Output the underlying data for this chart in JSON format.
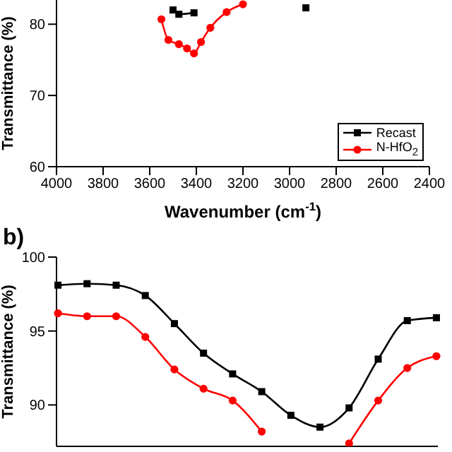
{
  "chart_data": [
    {
      "type": "line",
      "xlabel": "Wavenumber (cm$^{-1}$)",
      "ylabel": "Transmittance (%)",
      "xlim": [
        4000,
        2400
      ],
      "xticks": [
        4000,
        3800,
        3600,
        3400,
        3200,
        3000,
        2800,
        2600,
        2400
      ],
      "ylim": [
        60,
        83.4
      ],
      "yticks": [
        60,
        70,
        80
      ],
      "legend": "bottom right",
      "grid": false,
      "series": [
        {
          "name": "Recast",
          "color": "#000000",
          "marker": "square",
          "x": [
            3500,
            3475,
            3410,
            3200,
            2930
          ],
          "values": [
            82,
            81.4,
            81.6,
            null,
            82.3
          ]
        },
        {
          "name": "N-HfO$_{2}$",
          "color": "#ff0000",
          "marker": "circle",
          "x": [
            3550,
            3520,
            3475,
            3440,
            3410,
            3380,
            3340,
            3270,
            3200
          ],
          "values": [
            80.7,
            77.8,
            77.2,
            76.6,
            75.9,
            77.5,
            79.5,
            81.7,
            82.8
          ]
        }
      ]
    },
    {
      "type": "line",
      "title": "b)",
      "ylabel": "Transmittance (%)",
      "categories": [
        null,
        null,
        null,
        null,
        null,
        null,
        null,
        null,
        null,
        null,
        null,
        null,
        null,
        null
      ],
      "ylim": [
        87.2,
        100
      ],
      "yticks": [
        90,
        95,
        100
      ],
      "tick_labels": "y",
      "grid": false,
      "series": [
        {
          "color": "#000000",
          "marker": "square",
          "values": [
            98.1,
            98.2,
            98.1,
            97.4,
            95.5,
            93.5,
            92.1,
            90.9,
            89.3,
            88.5,
            89.8,
            93.1,
            95.7,
            95.9
          ]
        },
        {
          "color": "#ff0000",
          "marker": "circle",
          "values": [
            96.2,
            96.0,
            96.0,
            94.6,
            92.4,
            91.1,
            90.3,
            88.2,
            null,
            null,
            87.4,
            90.3,
            92.5,
            93.3
          ]
        }
      ]
    }
  ]
}
